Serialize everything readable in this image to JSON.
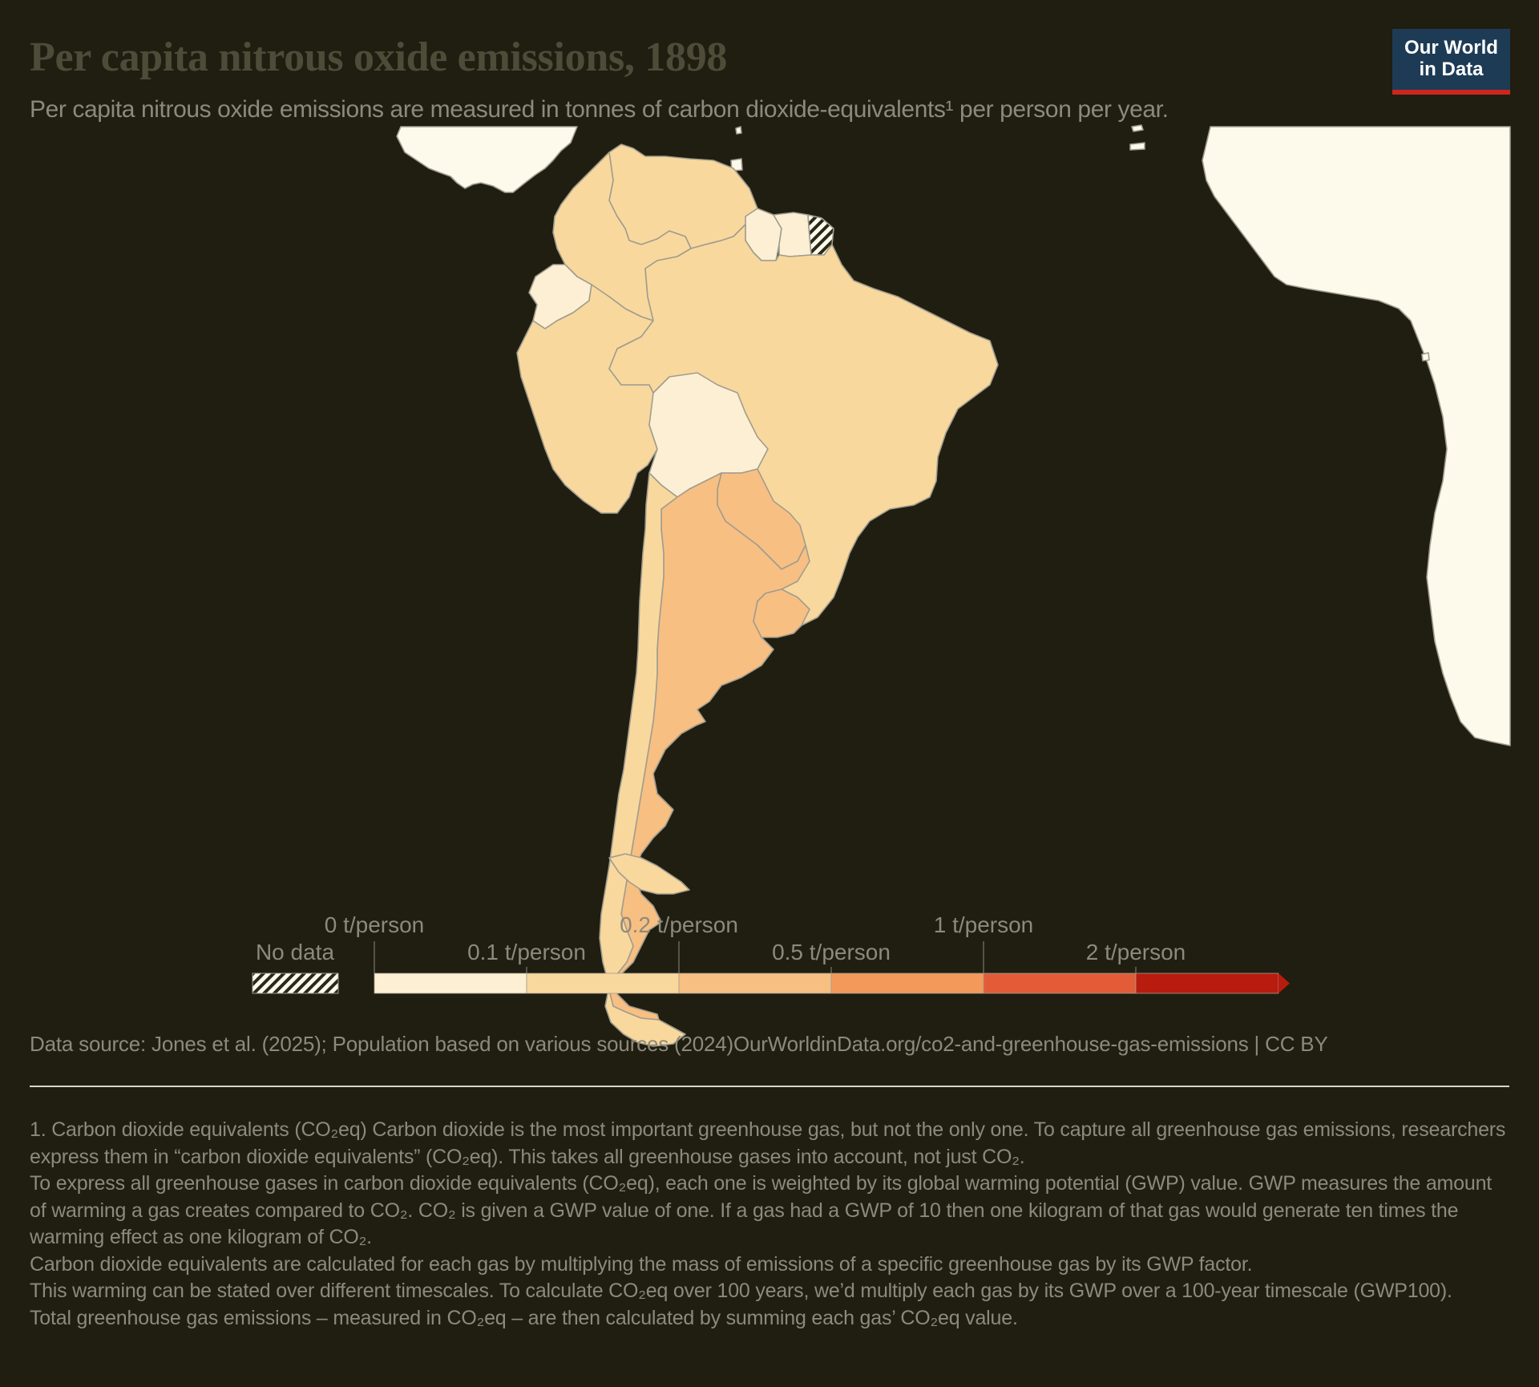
{
  "header": {
    "title": "Per capita nitrous oxide emissions, 1898",
    "subtitle": "Per capita nitrous oxide emissions are measured in tonnes of carbon dioxide-equivalents¹ per person per year."
  },
  "logo": {
    "line1": "Our World",
    "line2": "in Data"
  },
  "legend": {
    "no_data_label": "No data",
    "bins": [
      {
        "label": "0 t/person",
        "color": "#fcefd3"
      },
      {
        "label": "0.1 t/person",
        "color": "#f9d89d"
      },
      {
        "label": "0.2 t/person",
        "color": "#f8bf82"
      },
      {
        "label": "0.5 t/person",
        "color": "#f39a5a"
      },
      {
        "label": "1 t/person",
        "color": "#e35c38"
      },
      {
        "label": "2 t/person",
        "color": "#b81c0f"
      }
    ]
  },
  "map": {
    "colors": {
      "background": "#201e10",
      "no_data_land": "#fdfaec",
      "border": "#a09d8f"
    },
    "countries": [
      {
        "name": "Colombia",
        "bin": "0.1–0.2"
      },
      {
        "name": "Venezuela",
        "bin": "0.1–0.2"
      },
      {
        "name": "Guyana",
        "bin": "0–0.1"
      },
      {
        "name": "Suriname",
        "bin": "0–0.1"
      },
      {
        "name": "French Guiana",
        "bin": "No data"
      },
      {
        "name": "Ecuador",
        "bin": "0–0.1"
      },
      {
        "name": "Peru",
        "bin": "0.1–0.2"
      },
      {
        "name": "Brazil",
        "bin": "0.1–0.2"
      },
      {
        "name": "Bolivia",
        "bin": "0–0.1"
      },
      {
        "name": "Paraguay",
        "bin": "0.2–0.5"
      },
      {
        "name": "Chile",
        "bin": "0.1–0.2"
      },
      {
        "name": "Argentina",
        "bin": "0.2–0.5"
      },
      {
        "name": "Uruguay",
        "bin": "0.2–0.5"
      }
    ]
  },
  "footer": {
    "source": "Data source: Jones et al. (2025); Population based on various sources (2024)",
    "url": "OurWorldinData.org/co2-and-greenhouse-gas-emissions | CC BY",
    "footnote": [
      "1. Carbon dioxide equivalents (CO₂eq) Carbon dioxide is the most important greenhouse gas, but not the only one. To capture all greenhouse gas emissions, researchers express them in “carbon dioxide equivalents” (CO₂eq). This takes all greenhouse gases into account, not just CO₂.",
      "To express all greenhouse gases in carbon dioxide equivalents (CO₂eq), each one is weighted by its global warming potential (GWP) value. GWP measures the amount of warming a gas creates compared to CO₂. CO₂ is given a GWP value of one. If a gas had a GWP of 10 then one kilogram of that gas would generate ten times the warming effect as one kilogram of CO₂.",
      "Carbon dioxide equivalents are calculated for each gas by multiplying the mass of emissions of a specific greenhouse gas by its GWP factor.",
      "This warming can be stated over different timescales. To calculate CO₂eq over 100 years, we’d multiply each gas by its GWP over a 100-year timescale (GWP100).",
      "Total greenhouse gas emissions – measured in CO₂eq – are then calculated by summing each gas’ CO₂eq value."
    ]
  }
}
